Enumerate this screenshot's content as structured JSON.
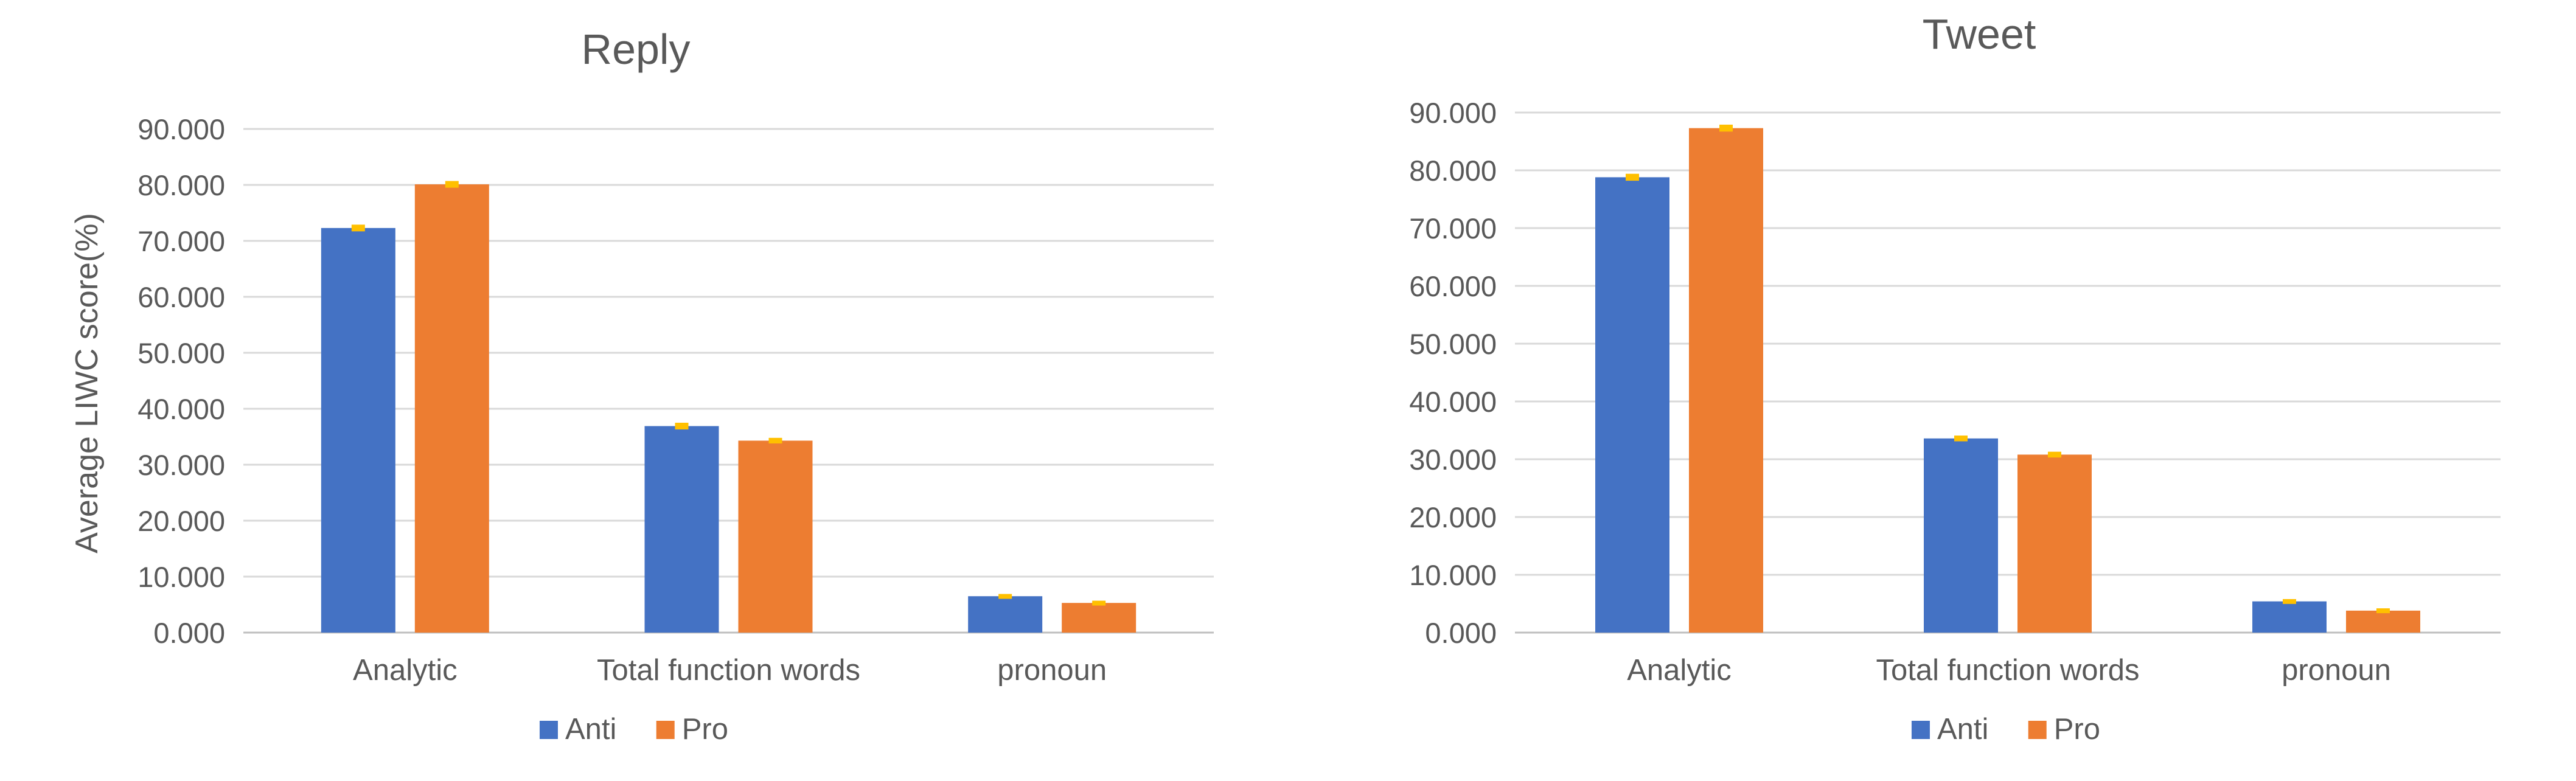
{
  "chart_data": [
    {
      "type": "bar",
      "title": "Reply",
      "xlabel": "",
      "ylabel": "Average  LIWC score(%)",
      "categories": [
        "Analytic",
        "Total function words",
        "pronoun"
      ],
      "series": [
        {
          "name": "Anti",
          "values": [
            72.3,
            36.9,
            6.5
          ],
          "error": [
            0.6,
            0.6,
            0.4
          ],
          "color": "#4472C4"
        },
        {
          "name": "Pro",
          "values": [
            80.1,
            34.3,
            5.3
          ],
          "error": [
            0.6,
            0.5,
            0.4
          ],
          "color": "#ED7D31"
        }
      ],
      "error_bar_color": "#FFC000",
      "ylim": [
        0,
        90
      ],
      "ytick_step": 10,
      "ytick_decimals": 3,
      "grid": true,
      "legend_position": "bottom"
    },
    {
      "type": "bar",
      "title": "Tweet",
      "xlabel": "",
      "ylabel": "",
      "categories": [
        "Analytic",
        "Total function words",
        "pronoun"
      ],
      "series": [
        {
          "name": "Anti",
          "values": [
            78.8,
            33.6,
            5.4
          ],
          "error": [
            0.6,
            0.5,
            0.4
          ],
          "color": "#4472C4"
        },
        {
          "name": "Pro",
          "values": [
            87.3,
            30.8,
            3.8
          ],
          "error": [
            0.6,
            0.5,
            0.4
          ],
          "color": "#ED7D31"
        }
      ],
      "error_bar_color": "#FFC000",
      "ylim": [
        0,
        90
      ],
      "ytick_step": 10,
      "ytick_decimals": 3,
      "grid": true,
      "legend_position": "bottom"
    }
  ]
}
